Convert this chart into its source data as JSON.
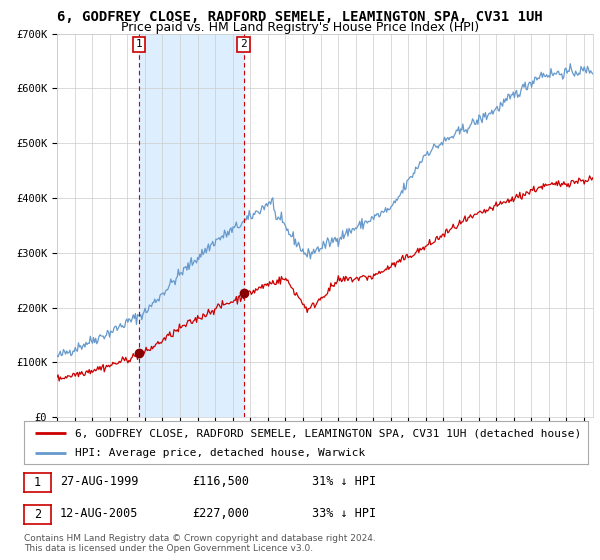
{
  "title": "6, GODFREY CLOSE, RADFORD SEMELE, LEAMINGTON SPA, CV31 1UH",
  "subtitle": "Price paid vs. HM Land Registry's House Price Index (HPI)",
  "xlim_start": 1995.0,
  "xlim_end": 2025.5,
  "ylim": [
    0,
    700000
  ],
  "yticks": [
    0,
    100000,
    200000,
    300000,
    400000,
    500000,
    600000,
    700000
  ],
  "ytick_labels": [
    "£0",
    "£100K",
    "£200K",
    "£300K",
    "£400K",
    "£500K",
    "£600K",
    "£700K"
  ],
  "hpi_color": "#6699cc",
  "price_color": "#cc0000",
  "marker_color": "#880000",
  "vline_color": "#cc0000",
  "shade_color": "#ddeeff",
  "transaction1_x": 1999.65,
  "transaction1_y": 116500,
  "transaction2_x": 2005.62,
  "transaction2_y": 227000,
  "legend_line1": "6, GODFREY CLOSE, RADFORD SEMELE, LEAMINGTON SPA, CV31 1UH (detached house)",
  "legend_line2": "HPI: Average price, detached house, Warwick",
  "table_row1": [
    "1",
    "27-AUG-1999",
    "£116,500",
    "31% ↓ HPI"
  ],
  "table_row2": [
    "2",
    "12-AUG-2005",
    "£227,000",
    "33% ↓ HPI"
  ],
  "footer": "Contains HM Land Registry data © Crown copyright and database right 2024.\nThis data is licensed under the Open Government Licence v3.0.",
  "bg_color": "#ffffff",
  "grid_color": "#cccccc",
  "title_fontsize": 10,
  "subtitle_fontsize": 9,
  "tick_fontsize": 7.5,
  "legend_fontsize": 8,
  "table_fontsize": 8.5,
  "footer_fontsize": 6.5
}
